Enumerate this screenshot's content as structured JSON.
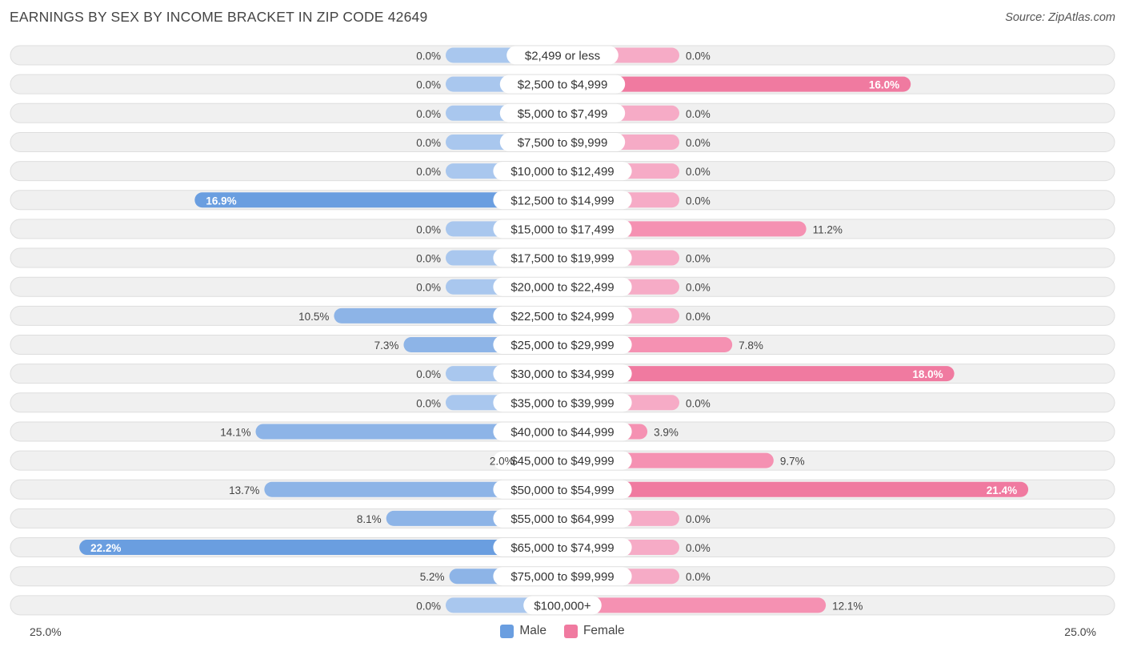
{
  "title": "EARNINGS BY SEX BY INCOME BRACKET IN ZIP CODE 42649",
  "source": "Source: ZipAtlas.com",
  "colors": {
    "male_strong": "#6a9ee0",
    "male_light": "#a9c7ee",
    "female_strong": "#f07aa0",
    "female_light": "#f6abc6"
  },
  "legend": {
    "male": "Male",
    "female": "Female"
  },
  "axis": {
    "left_label": "25.0%",
    "right_label": "25.0%"
  },
  "chart_data": {
    "type": "bar",
    "orientation": "horizontal-diverging",
    "title": "EARNINGS BY SEX BY INCOME BRACKET IN ZIP CODE 42649",
    "xlim": [
      -25,
      25
    ],
    "categories": [
      "$2,499 or less",
      "$2,500 to $4,999",
      "$5,000 to $7,499",
      "$7,500 to $9,999",
      "$10,000 to $12,499",
      "$12,500 to $14,999",
      "$15,000 to $17,499",
      "$17,500 to $19,999",
      "$20,000 to $22,499",
      "$22,500 to $24,999",
      "$25,000 to $29,999",
      "$30,000 to $34,999",
      "$35,000 to $39,999",
      "$40,000 to $44,999",
      "$45,000 to $49,999",
      "$50,000 to $54,999",
      "$55,000 to $64,999",
      "$65,000 to $74,999",
      "$75,000 to $99,999",
      "$100,000+"
    ],
    "series": [
      {
        "name": "Male",
        "values": [
          0.0,
          0.0,
          0.0,
          0.0,
          0.0,
          16.9,
          0.0,
          0.0,
          0.0,
          10.5,
          7.3,
          0.0,
          0.0,
          14.1,
          2.0,
          13.7,
          8.1,
          22.2,
          5.2,
          0.0
        ],
        "labels": [
          "0.0%",
          "0.0%",
          "0.0%",
          "0.0%",
          "0.0%",
          "16.9%",
          "0.0%",
          "0.0%",
          "0.0%",
          "10.5%",
          "7.3%",
          "0.0%",
          "0.0%",
          "14.1%",
          "2.0%",
          "13.7%",
          "8.1%",
          "22.2%",
          "5.2%",
          "0.0%"
        ]
      },
      {
        "name": "Female",
        "values": [
          0.0,
          16.0,
          0.0,
          0.0,
          0.0,
          0.0,
          11.2,
          0.0,
          0.0,
          0.0,
          7.8,
          18.0,
          0.0,
          3.9,
          9.7,
          21.4,
          0.0,
          0.0,
          0.0,
          12.1
        ],
        "labels": [
          "0.0%",
          "16.0%",
          "0.0%",
          "0.0%",
          "0.0%",
          "0.0%",
          "11.2%",
          "0.0%",
          "0.0%",
          "0.0%",
          "7.8%",
          "18.0%",
          "0.0%",
          "3.9%",
          "9.7%",
          "21.4%",
          "0.0%",
          "0.0%",
          "0.0%",
          "12.1%"
        ]
      }
    ]
  }
}
